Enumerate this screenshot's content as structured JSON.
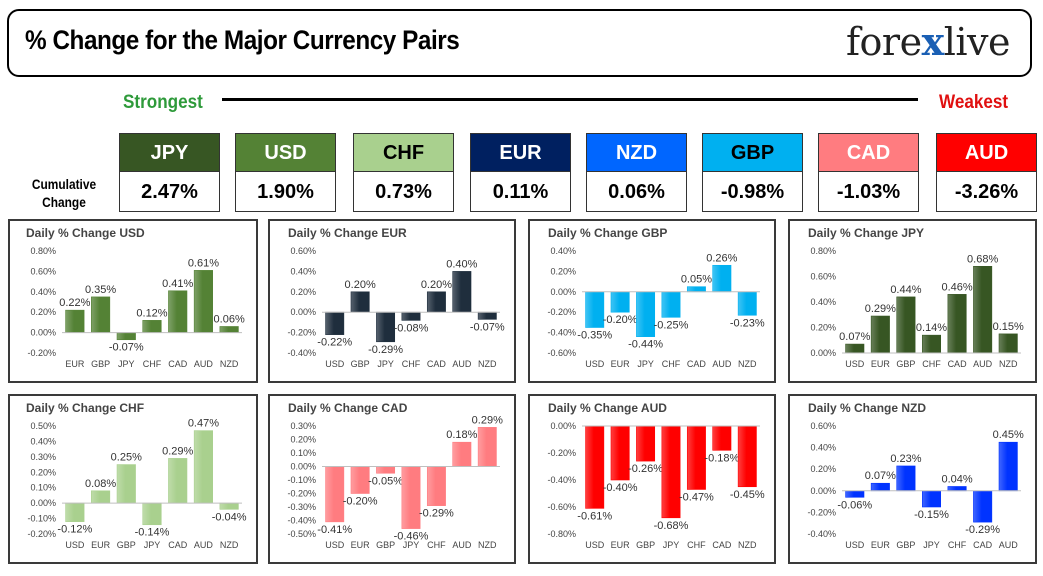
{
  "header": {
    "title": "% Change for the Major Currency Pairs",
    "logo_left": "fore",
    "logo_x": "x",
    "logo_right": "live"
  },
  "ranking": {
    "strongest": "Strongest",
    "weakest": "Weakest",
    "cumulative_label": "Cumulative Change"
  },
  "currencies": [
    {
      "name": "JPY",
      "value": "2.47%",
      "color": "#375623",
      "text_color": "#ffffff"
    },
    {
      "name": "USD",
      "value": "1.90%",
      "color": "#548235",
      "text_color": "#ffffff"
    },
    {
      "name": "CHF",
      "value": "0.73%",
      "color": "#a9d08e",
      "text_color": "#000000"
    },
    {
      "name": "EUR",
      "value": "0.11%",
      "color": "#002060",
      "text_color": "#ffffff"
    },
    {
      "name": "NZD",
      "value": "0.06%",
      "color": "#0066ff",
      "text_color": "#ffffff"
    },
    {
      "name": "GBP",
      "value": "-0.98%",
      "color": "#00b0f0",
      "text_color": "#000000"
    },
    {
      "name": "CAD",
      "value": "-1.03%",
      "color": "#ff7c80",
      "text_color": "#ffffff"
    },
    {
      "name": "AUD",
      "value": "-3.26%",
      "color": "#ff0000",
      "text_color": "#ffffff"
    }
  ],
  "chart_data": [
    {
      "type": "bar",
      "title": "Daily % Change USD",
      "categories": [
        "EUR",
        "GBP",
        "JPY",
        "CHF",
        "CAD",
        "AUD",
        "NZD"
      ],
      "values": [
        0.22,
        0.35,
        -0.07,
        0.12,
        0.41,
        0.61,
        0.06
      ],
      "labels": [
        "0.22%",
        "0.35%",
        "-0.07%",
        "0.12%",
        "0.41%",
        "0.61%",
        "0.06%"
      ],
      "ylim": [
        -0.2,
        0.8
      ],
      "ticks": [
        0.8,
        0.6,
        0.4,
        0.2,
        0,
        -0.2
      ],
      "tick_labels": [
        "0.80%",
        "0.60%",
        "0.40%",
        "0.20%",
        "0.00%",
        "-0.20%"
      ],
      "color": "#548235",
      "grid": false
    },
    {
      "type": "bar",
      "title": "Daily % Change EUR",
      "categories": [
        "USD",
        "GBP",
        "JPY",
        "CHF",
        "CAD",
        "AUD",
        "NZD"
      ],
      "values": [
        -0.22,
        0.2,
        -0.29,
        -0.08,
        0.2,
        0.4,
        -0.07
      ],
      "labels": [
        "-0.22%",
        "0.20%",
        "-0.29%",
        "-0.08%",
        "0.20%",
        "0.40%",
        "-0.07%"
      ],
      "ylim": [
        -0.4,
        0.6
      ],
      "ticks": [
        0.6,
        0.4,
        0.2,
        0,
        -0.2,
        -0.4
      ],
      "tick_labels": [
        "0.60%",
        "0.40%",
        "0.20%",
        "0.00%",
        "-0.20%",
        "-0.40%"
      ],
      "color": "#1f2e3d",
      "grid": false
    },
    {
      "type": "bar",
      "title": "Daily % Change GBP",
      "categories": [
        "USD",
        "EUR",
        "JPY",
        "CHF",
        "CAD",
        "AUD",
        "NZD"
      ],
      "values": [
        -0.35,
        -0.2,
        -0.44,
        -0.25,
        0.05,
        0.26,
        -0.23
      ],
      "labels": [
        "-0.35%",
        "-0.20%",
        "-0.44%",
        "-0.25%",
        "0.05%",
        "0.26%",
        "-0.23%"
      ],
      "ylim": [
        -0.6,
        0.4
      ],
      "ticks": [
        0.4,
        0.2,
        0,
        -0.2,
        -0.4,
        -0.6
      ],
      "tick_labels": [
        "0.40%",
        "0.20%",
        "0.00%",
        "-0.20%",
        "-0.40%",
        "-0.60%"
      ],
      "color": "#00b0f0",
      "grid": false
    },
    {
      "type": "bar",
      "title": "Daily % Change JPY",
      "categories": [
        "USD",
        "EUR",
        "GBP",
        "CHF",
        "CAD",
        "AUD",
        "NZD"
      ],
      "values": [
        0.07,
        0.29,
        0.44,
        0.14,
        0.46,
        0.68,
        0.15
      ],
      "labels": [
        "0.07%",
        "0.29%",
        "0.44%",
        "0.14%",
        "0.46%",
        "0.68%",
        "0.15%"
      ],
      "ylim": [
        0,
        0.8
      ],
      "ticks": [
        0.8,
        0.6,
        0.4,
        0.2,
        0
      ],
      "tick_labels": [
        "0.80%",
        "0.60%",
        "0.40%",
        "0.20%",
        "0.00%"
      ],
      "color": "#375623",
      "grid": false
    },
    {
      "type": "bar",
      "title": "Daily % Change CHF",
      "categories": [
        "USD",
        "EUR",
        "GBP",
        "JPY",
        "CAD",
        "AUD",
        "NZD"
      ],
      "values": [
        -0.12,
        0.08,
        0.25,
        -0.14,
        0.29,
        0.47,
        -0.04
      ],
      "labels": [
        "-0.12%",
        "0.08%",
        "0.25%",
        "-0.14%",
        "0.29%",
        "0.47%",
        "-0.04%"
      ],
      "ylim": [
        -0.2,
        0.5
      ],
      "ticks": [
        0.5,
        0.4,
        0.3,
        0.2,
        0.1,
        0,
        -0.1,
        -0.2
      ],
      "tick_labels": [
        "0.50%",
        "0.40%",
        "0.30%",
        "0.20%",
        "0.10%",
        "0.00%",
        "-0.10%",
        "-0.20%"
      ],
      "color": "#a9d08e",
      "grid": false
    },
    {
      "type": "bar",
      "title": "Daily % Change CAD",
      "categories": [
        "USD",
        "EUR",
        "GBP",
        "JPY",
        "CHF",
        "AUD",
        "NZD"
      ],
      "values": [
        -0.41,
        -0.2,
        -0.05,
        -0.46,
        -0.29,
        0.18,
        0.29
      ],
      "labels": [
        "-0.41%",
        "-0.20%",
        "-0.05%",
        "-0.46%",
        "-0.29%",
        "0.18%",
        "0.29%"
      ],
      "ylim": [
        -0.5,
        0.3
      ],
      "ticks": [
        0.3,
        0.2,
        0.1,
        0,
        -0.1,
        -0.2,
        -0.3,
        -0.4,
        -0.5
      ],
      "tick_labels": [
        "0.30%",
        "0.20%",
        "0.10%",
        "0.00%",
        "-0.10%",
        "-0.20%",
        "-0.30%",
        "-0.40%",
        "-0.50%"
      ],
      "color": "#ff7c80",
      "grid": false
    },
    {
      "type": "bar",
      "title": "Daily % Change AUD",
      "categories": [
        "USD",
        "EUR",
        "GBP",
        "JPY",
        "CHF",
        "CAD",
        "NZD"
      ],
      "values": [
        -0.61,
        -0.4,
        -0.26,
        -0.68,
        -0.47,
        -0.18,
        -0.45
      ],
      "labels": [
        "-0.61%",
        "-0.40%",
        "-0.26%",
        "-0.68%",
        "-0.47%",
        "-0.18%",
        "-0.45%"
      ],
      "ylim": [
        -0.8,
        0
      ],
      "ticks": [
        0,
        -0.2,
        -0.4,
        -0.6,
        -0.8
      ],
      "tick_labels": [
        "0.00%",
        "-0.20%",
        "-0.40%",
        "-0.60%",
        "-0.80%"
      ],
      "color": "#ff0000",
      "grid": false
    },
    {
      "type": "bar",
      "title": "Daily % Change NZD",
      "categories": [
        "USD",
        "EUR",
        "GBP",
        "JPY",
        "CHF",
        "CAD",
        "AUD"
      ],
      "values": [
        -0.06,
        0.07,
        0.23,
        -0.15,
        0.04,
        -0.29,
        0.45
      ],
      "labels": [
        "-0.06%",
        "0.07%",
        "0.23%",
        "-0.15%",
        "0.04%",
        "-0.29%",
        "0.45%"
      ],
      "ylim": [
        -0.4,
        0.6
      ],
      "ticks": [
        0.6,
        0.4,
        0.2,
        0,
        -0.2,
        -0.4
      ],
      "tick_labels": [
        "0.60%",
        "0.40%",
        "0.20%",
        "0.00%",
        "-0.20%",
        "-0.40%"
      ],
      "color": "#0033ff",
      "grid": false
    }
  ]
}
